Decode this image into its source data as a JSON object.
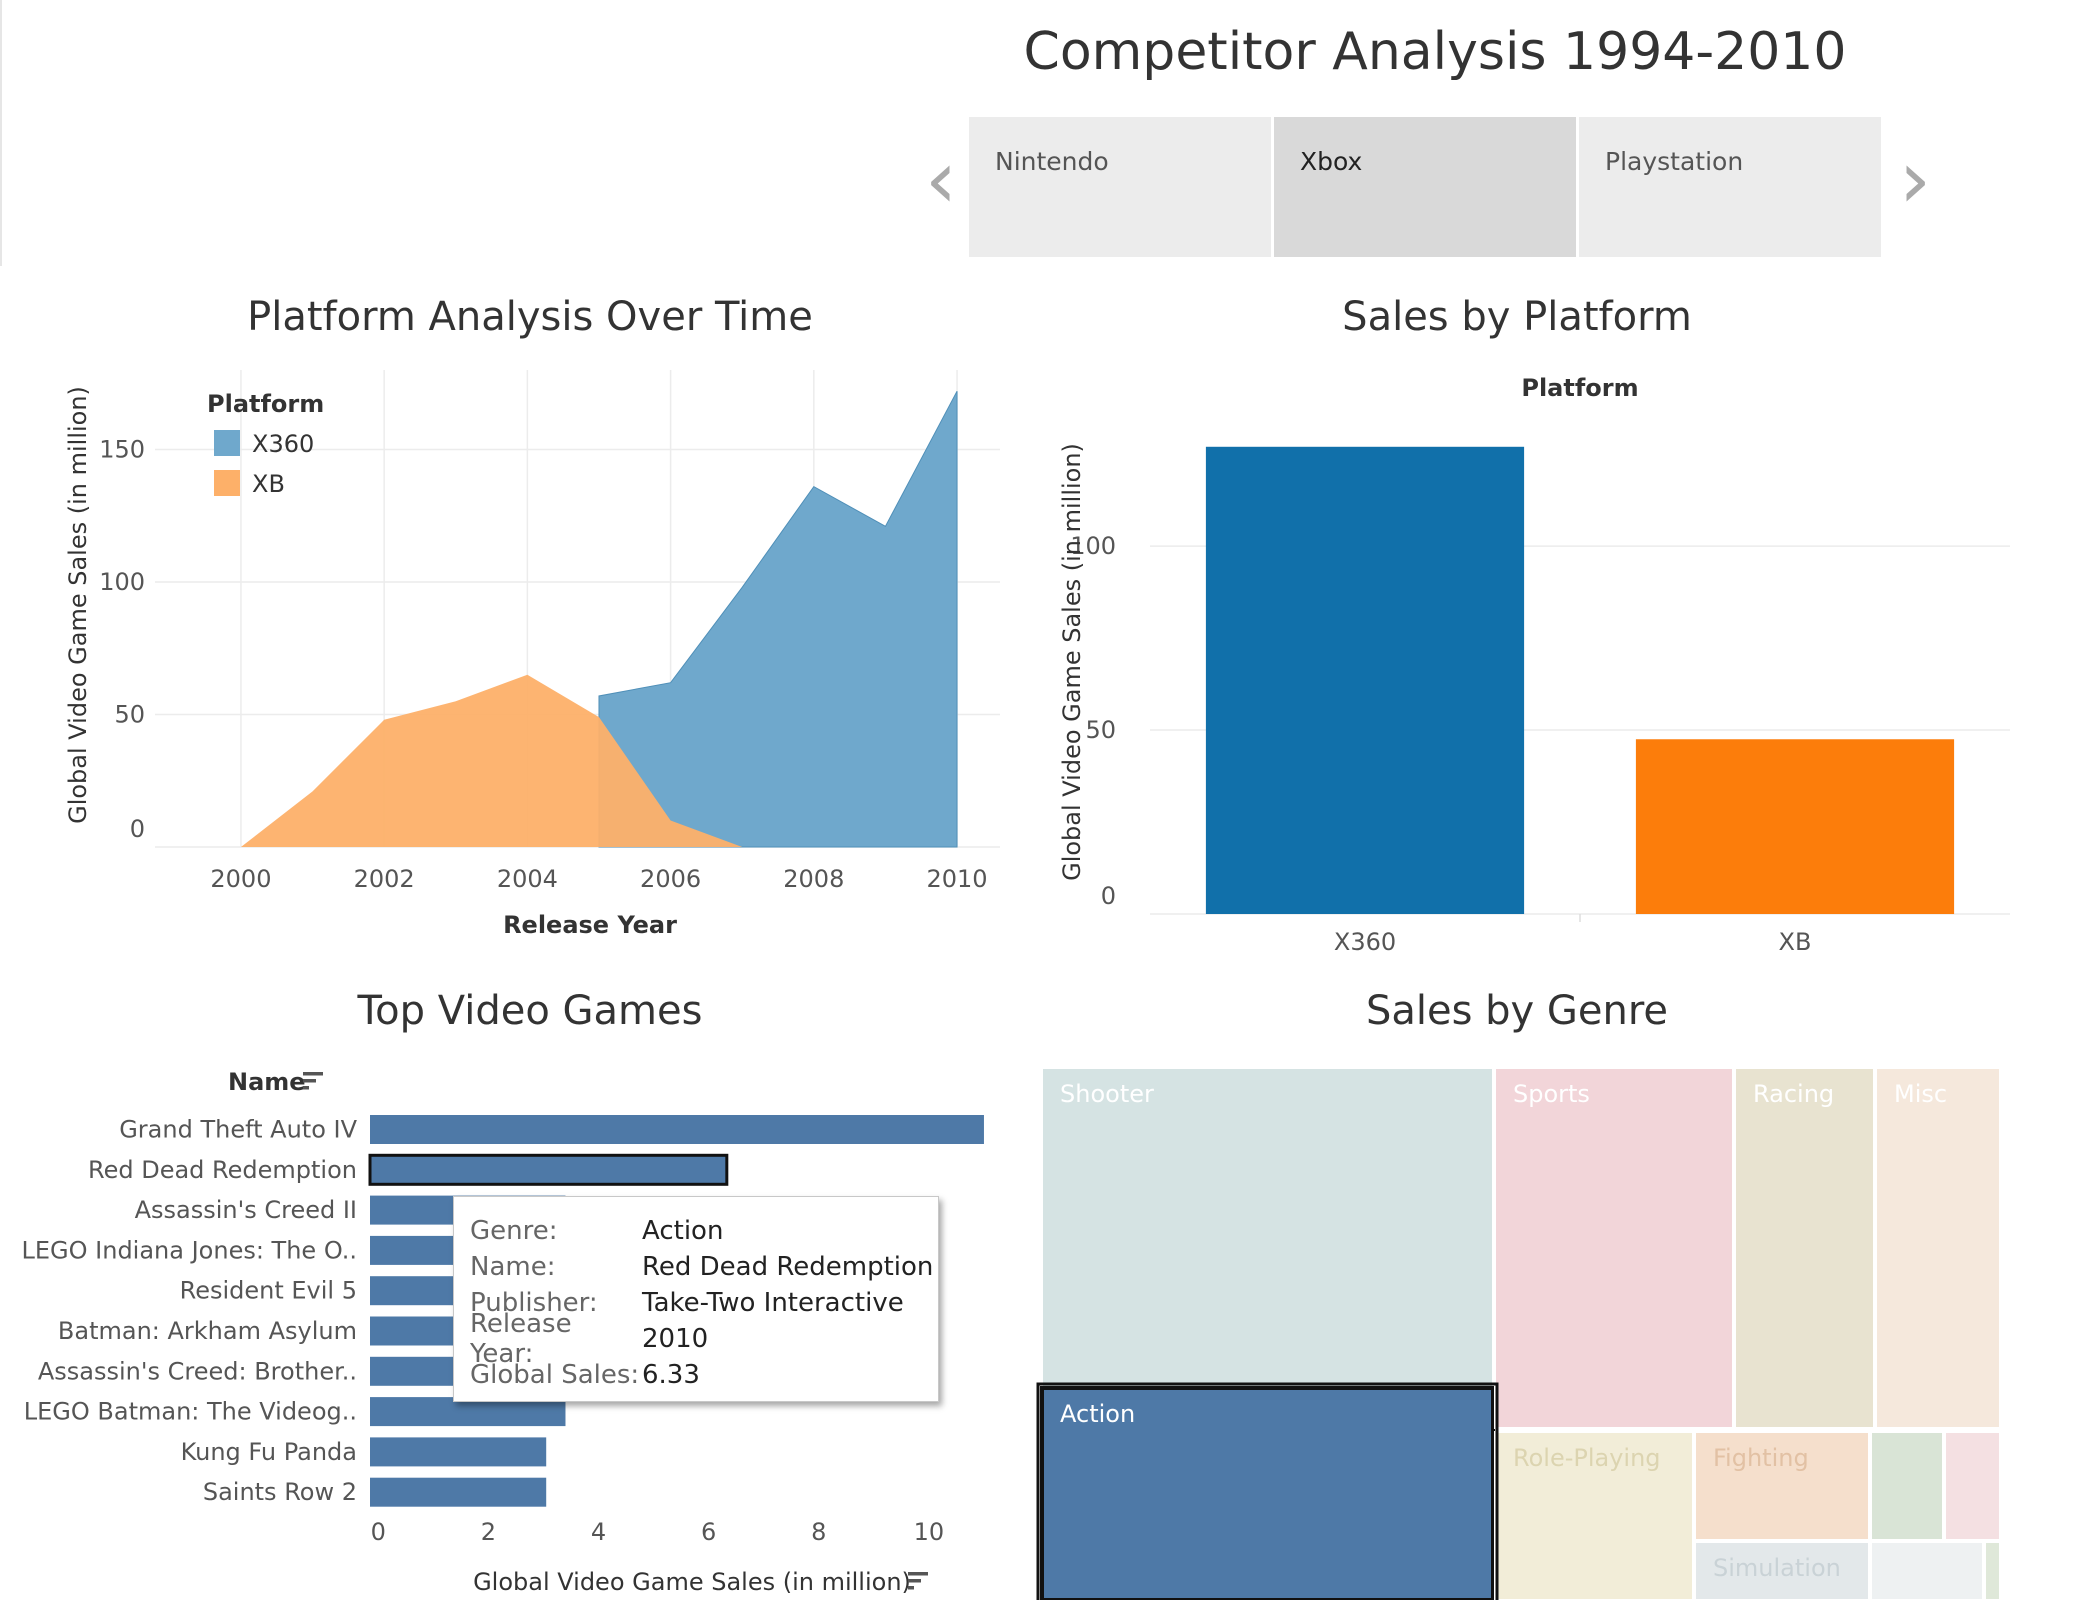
{
  "dashboard": {
    "title": "Competitor Analysis 1994-2010",
    "tabs": [
      {
        "label": "Nintendo",
        "active": false
      },
      {
        "label": "Xbox",
        "active": true
      },
      {
        "label": "Playstation",
        "active": false
      }
    ],
    "nav_prev": "‹",
    "nav_next": "›"
  },
  "colors": {
    "x360_area": "#6fa8cc",
    "xb_area": "#fdb069",
    "x360_bar": "#1170aa",
    "xb_bar": "#fc7d0b",
    "top_games_bar": "#4e79a7",
    "grid": "#ececec"
  },
  "chart_data": [
    {
      "type": "area",
      "title": "Platform Analysis Over Time",
      "xlabel": "Release Year",
      "ylabel": "Global Video Game Sales (in million)",
      "legend_title": "Platform",
      "legend_position": "top-left",
      "x_ticks": [
        2000,
        2002,
        2004,
        2006,
        2008,
        2010
      ],
      "y_ticks": [
        0,
        50,
        100,
        150
      ],
      "xlim": [
        1998.8,
        2010.6
      ],
      "ylim": [
        0,
        180
      ],
      "grid": true,
      "series": [
        {
          "name": "X360",
          "x": [
            2005,
            2006,
            2007,
            2008,
            2009,
            2010
          ],
          "values": [
            57,
            62,
            98,
            136,
            121,
            172
          ]
        },
        {
          "name": "XB",
          "x": [
            2000,
            2001,
            2002,
            2003,
            2004,
            2005,
            2006,
            2007
          ],
          "values": [
            0,
            21,
            48,
            55,
            65,
            49,
            10,
            0
          ]
        }
      ]
    },
    {
      "type": "bar",
      "title": "Sales by Platform",
      "xlabel": "Platform",
      "ylabel": "Global Video Game Sales (in million)",
      "categories": [
        "X360",
        "XB"
      ],
      "values": [
        127,
        47.5
      ],
      "y_ticks": [
        0,
        50,
        100
      ],
      "ylim": [
        0,
        137
      ],
      "grid": true
    },
    {
      "type": "bar",
      "orientation": "horizontal",
      "title": "Top Video Games",
      "ylabel": "Name",
      "xlabel": "Global Video Game Sales (in million)",
      "categories": [
        "Grand Theft Auto IV",
        "Red Dead Redemption",
        "Assassin's Creed II",
        "LEGO Indiana Jones: The O..",
        "Resident Evil 5",
        "Batman: Arkham Asylum",
        "Assassin's Creed: Brother..",
        "LEGO Batman: The Videog..",
        "Kung Fu Panda",
        "Saints Row 2"
      ],
      "values": [
        11.0,
        6.33,
        3.4,
        3.4,
        3.4,
        3.4,
        3.4,
        3.4,
        3.05,
        3.05
      ],
      "x_ticks": [
        0,
        2,
        4,
        6,
        8,
        10
      ],
      "xlim": [
        -0.15,
        11.6
      ],
      "highlighted": "Red Dead Redemption"
    },
    {
      "type": "treemap",
      "title": "Sales by Genre",
      "cells": [
        {
          "label": "Shooter",
          "color": "#d5e3e3",
          "text_color": "#ffffff"
        },
        {
          "label": "Action",
          "color": "#4e79a7",
          "text_color": "#ffffff",
          "selected": true
        },
        {
          "label": "Sports",
          "color": "#f2d5d9",
          "text_color": "#ffffff"
        },
        {
          "label": "Racing",
          "color": "#e8e3d0",
          "text_color": "#ffffff"
        },
        {
          "label": "Misc",
          "color": "#f5e8dc",
          "text_color": "#ffffff"
        },
        {
          "label": "Role-Playing",
          "color": "#f2edd8",
          "text_color": "#dcd4b0"
        },
        {
          "label": "Fighting",
          "color": "#f5dfcc",
          "text_color": "#e2c1a4"
        },
        {
          "label": "",
          "color": "#d9e4d6",
          "text_color": "#ffffff"
        },
        {
          "label": "",
          "color": "#f4e0e2",
          "text_color": "#ffffff"
        },
        {
          "label": "Simulation",
          "color": "#e3e8ea",
          "text_color": "#c9d2d6"
        },
        {
          "label": "",
          "color": "#eef1f2",
          "text_color": "#ffffff"
        },
        {
          "label": "",
          "color": "#dfe8d9",
          "text_color": "#ffffff"
        }
      ]
    }
  ],
  "tooltip": {
    "rows": [
      {
        "key": "Genre:",
        "value": "Action"
      },
      {
        "key": "Name:",
        "value": "Red Dead Redemption"
      },
      {
        "key": "Publisher:",
        "value": "Take-Two Interactive"
      },
      {
        "key": "Release Year:",
        "value": "2010"
      },
      {
        "key": "Global Sales:",
        "value": "6.33"
      }
    ]
  },
  "icons": {
    "sort_name": "sort-descending-icon",
    "sort_axis": "sort-descending-icon"
  }
}
